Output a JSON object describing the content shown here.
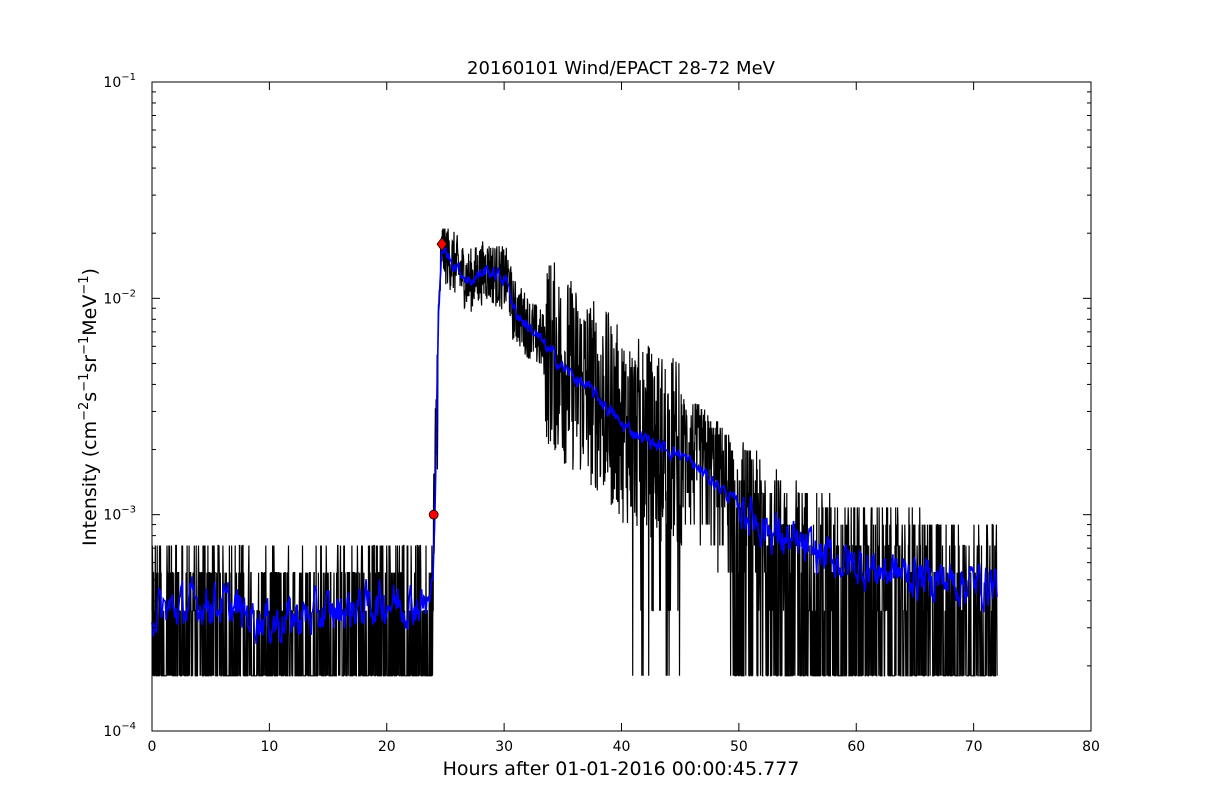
{
  "chart_data": {
    "type": "line",
    "title": "20160101 Wind/EPACT 28-72 MeV",
    "xlabel": "Hours after 01-01-2016 00:00:45.777",
    "ylabel": {
      "base": "Intensity (cm",
      "sup1": "−2",
      "mid1": "s",
      "sup2": "−1",
      "mid2": "sr",
      "sup3": "−1",
      "mid3": "MeV",
      "sup4": "−1",
      "end": ")"
    },
    "xlim": [
      0,
      80
    ],
    "ylim": [
      0.0001,
      0.1
    ],
    "yscale": "log",
    "grid": false,
    "x_ticks": [
      0,
      10,
      20,
      30,
      40,
      50,
      60,
      70,
      80
    ],
    "x_tick_labels": [
      "0",
      "10",
      "20",
      "30",
      "40",
      "50",
      "60",
      "70",
      "80"
    ],
    "y_ticks": [
      0.0001,
      0.001,
      0.01,
      0.1
    ],
    "y_tick_labels": [
      {
        "base": "10",
        "exp": "−4"
      },
      {
        "base": "10",
        "exp": "−3"
      },
      {
        "base": "10",
        "exp": "−2"
      },
      {
        "base": "10",
        "exp": "−1"
      }
    ],
    "series": [
      {
        "role": "raw",
        "color": "#000000",
        "noise_floor": 0.00018,
        "envelope": {
          "x": [
            0,
            5,
            10,
            15,
            20,
            23.8,
            24.1,
            24.4,
            24.7,
            25.5,
            27,
            28.5,
            30.4,
            30.7,
            33,
            35,
            38,
            40,
            43,
            45,
            48,
            50,
            52,
            55,
            60,
            65,
            70,
            72
          ],
          "y": [
            0.00035,
            0.0004,
            0.00032,
            0.00035,
            0.0004,
            0.00038,
            0.001,
            0.008,
            0.017,
            0.015,
            0.012,
            0.0135,
            0.012,
            0.009,
            0.0065,
            0.0048,
            0.0035,
            0.0026,
            0.0021,
            0.0019,
            0.0014,
            0.0011,
            0.0009,
            0.0007,
            0.00058,
            0.00052,
            0.00048,
            0.00048
          ]
        }
      },
      {
        "role": "smoothed",
        "color": "#0000ff",
        "x": [
          0,
          5,
          10,
          15,
          20,
          23.8,
          24.1,
          24.4,
          24.7,
          25.5,
          27,
          28.5,
          30.4,
          30.7,
          33,
          35,
          38,
          40,
          43,
          45,
          48,
          50,
          52,
          55,
          60,
          65,
          70,
          72
        ],
        "y": [
          0.00035,
          0.0004,
          0.00032,
          0.00035,
          0.0004,
          0.00038,
          0.001,
          0.008,
          0.017,
          0.015,
          0.012,
          0.0135,
          0.012,
          0.009,
          0.0065,
          0.0048,
          0.0035,
          0.0026,
          0.0021,
          0.0019,
          0.0014,
          0.0011,
          0.0009,
          0.0007,
          0.00058,
          0.00052,
          0.00048,
          0.00048
        ]
      }
    ],
    "markers": [
      {
        "name": "onset",
        "x": 24.0,
        "y": 0.001,
        "shape": "circle",
        "color": "#ff0000"
      },
      {
        "name": "peak",
        "x": 24.7,
        "y": 0.0178,
        "shape": "diamond",
        "color": "#ff0000"
      }
    ]
  }
}
